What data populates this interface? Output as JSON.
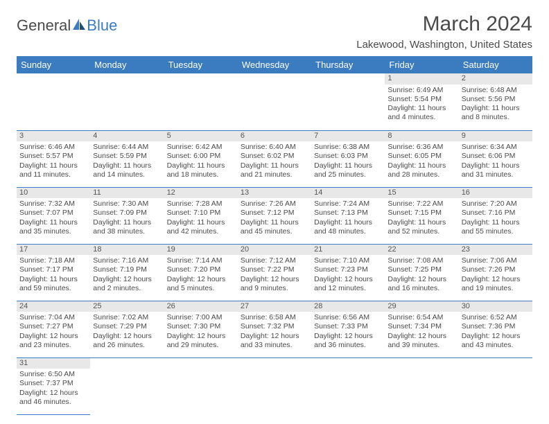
{
  "logo": {
    "word1": "General",
    "word2": "Blue"
  },
  "title": "March 2024",
  "location": "Lakewood, Washington, United States",
  "colors": {
    "header_bg": "#3b7bbf",
    "header_text": "#ffffff",
    "daynum_bg": "#e8e8e8",
    "border": "#3b7bbf",
    "text": "#4a4a4a",
    "background": "#ffffff"
  },
  "typography": {
    "title_fontsize": 30,
    "location_fontsize": 15,
    "dayheader_fontsize": 13,
    "cell_fontsize": 10.5
  },
  "day_headers": [
    "Sunday",
    "Monday",
    "Tuesday",
    "Wednesday",
    "Thursday",
    "Friday",
    "Saturday"
  ],
  "weeks": [
    [
      {
        "day": "",
        "lines": []
      },
      {
        "day": "",
        "lines": []
      },
      {
        "day": "",
        "lines": []
      },
      {
        "day": "",
        "lines": []
      },
      {
        "day": "",
        "lines": []
      },
      {
        "day": "1",
        "lines": [
          "Sunrise: 6:49 AM",
          "Sunset: 5:54 PM",
          "Daylight: 11 hours and 4 minutes."
        ]
      },
      {
        "day": "2",
        "lines": [
          "Sunrise: 6:48 AM",
          "Sunset: 5:56 PM",
          "Daylight: 11 hours and 8 minutes."
        ]
      }
    ],
    [
      {
        "day": "3",
        "lines": [
          "Sunrise: 6:46 AM",
          "Sunset: 5:57 PM",
          "Daylight: 11 hours and 11 minutes."
        ]
      },
      {
        "day": "4",
        "lines": [
          "Sunrise: 6:44 AM",
          "Sunset: 5:59 PM",
          "Daylight: 11 hours and 14 minutes."
        ]
      },
      {
        "day": "5",
        "lines": [
          "Sunrise: 6:42 AM",
          "Sunset: 6:00 PM",
          "Daylight: 11 hours and 18 minutes."
        ]
      },
      {
        "day": "6",
        "lines": [
          "Sunrise: 6:40 AM",
          "Sunset: 6:02 PM",
          "Daylight: 11 hours and 21 minutes."
        ]
      },
      {
        "day": "7",
        "lines": [
          "Sunrise: 6:38 AM",
          "Sunset: 6:03 PM",
          "Daylight: 11 hours and 25 minutes."
        ]
      },
      {
        "day": "8",
        "lines": [
          "Sunrise: 6:36 AM",
          "Sunset: 6:05 PM",
          "Daylight: 11 hours and 28 minutes."
        ]
      },
      {
        "day": "9",
        "lines": [
          "Sunrise: 6:34 AM",
          "Sunset: 6:06 PM",
          "Daylight: 11 hours and 31 minutes."
        ]
      }
    ],
    [
      {
        "day": "10",
        "lines": [
          "Sunrise: 7:32 AM",
          "Sunset: 7:07 PM",
          "Daylight: 11 hours and 35 minutes."
        ]
      },
      {
        "day": "11",
        "lines": [
          "Sunrise: 7:30 AM",
          "Sunset: 7:09 PM",
          "Daylight: 11 hours and 38 minutes."
        ]
      },
      {
        "day": "12",
        "lines": [
          "Sunrise: 7:28 AM",
          "Sunset: 7:10 PM",
          "Daylight: 11 hours and 42 minutes."
        ]
      },
      {
        "day": "13",
        "lines": [
          "Sunrise: 7:26 AM",
          "Sunset: 7:12 PM",
          "Daylight: 11 hours and 45 minutes."
        ]
      },
      {
        "day": "14",
        "lines": [
          "Sunrise: 7:24 AM",
          "Sunset: 7:13 PM",
          "Daylight: 11 hours and 48 minutes."
        ]
      },
      {
        "day": "15",
        "lines": [
          "Sunrise: 7:22 AM",
          "Sunset: 7:15 PM",
          "Daylight: 11 hours and 52 minutes."
        ]
      },
      {
        "day": "16",
        "lines": [
          "Sunrise: 7:20 AM",
          "Sunset: 7:16 PM",
          "Daylight: 11 hours and 55 minutes."
        ]
      }
    ],
    [
      {
        "day": "17",
        "lines": [
          "Sunrise: 7:18 AM",
          "Sunset: 7:17 PM",
          "Daylight: 11 hours and 59 minutes."
        ]
      },
      {
        "day": "18",
        "lines": [
          "Sunrise: 7:16 AM",
          "Sunset: 7:19 PM",
          "Daylight: 12 hours and 2 minutes."
        ]
      },
      {
        "day": "19",
        "lines": [
          "Sunrise: 7:14 AM",
          "Sunset: 7:20 PM",
          "Daylight: 12 hours and 5 minutes."
        ]
      },
      {
        "day": "20",
        "lines": [
          "Sunrise: 7:12 AM",
          "Sunset: 7:22 PM",
          "Daylight: 12 hours and 9 minutes."
        ]
      },
      {
        "day": "21",
        "lines": [
          "Sunrise: 7:10 AM",
          "Sunset: 7:23 PM",
          "Daylight: 12 hours and 12 minutes."
        ]
      },
      {
        "day": "22",
        "lines": [
          "Sunrise: 7:08 AM",
          "Sunset: 7:25 PM",
          "Daylight: 12 hours and 16 minutes."
        ]
      },
      {
        "day": "23",
        "lines": [
          "Sunrise: 7:06 AM",
          "Sunset: 7:26 PM",
          "Daylight: 12 hours and 19 minutes."
        ]
      }
    ],
    [
      {
        "day": "24",
        "lines": [
          "Sunrise: 7:04 AM",
          "Sunset: 7:27 PM",
          "Daylight: 12 hours and 23 minutes."
        ]
      },
      {
        "day": "25",
        "lines": [
          "Sunrise: 7:02 AM",
          "Sunset: 7:29 PM",
          "Daylight: 12 hours and 26 minutes."
        ]
      },
      {
        "day": "26",
        "lines": [
          "Sunrise: 7:00 AM",
          "Sunset: 7:30 PM",
          "Daylight: 12 hours and 29 minutes."
        ]
      },
      {
        "day": "27",
        "lines": [
          "Sunrise: 6:58 AM",
          "Sunset: 7:32 PM",
          "Daylight: 12 hours and 33 minutes."
        ]
      },
      {
        "day": "28",
        "lines": [
          "Sunrise: 6:56 AM",
          "Sunset: 7:33 PM",
          "Daylight: 12 hours and 36 minutes."
        ]
      },
      {
        "day": "29",
        "lines": [
          "Sunrise: 6:54 AM",
          "Sunset: 7:34 PM",
          "Daylight: 12 hours and 39 minutes."
        ]
      },
      {
        "day": "30",
        "lines": [
          "Sunrise: 6:52 AM",
          "Sunset: 7:36 PM",
          "Daylight: 12 hours and 43 minutes."
        ]
      }
    ],
    [
      {
        "day": "31",
        "lines": [
          "Sunrise: 6:50 AM",
          "Sunset: 7:37 PM",
          "Daylight: 12 hours and 46 minutes."
        ]
      },
      {
        "day": "",
        "lines": []
      },
      {
        "day": "",
        "lines": []
      },
      {
        "day": "",
        "lines": []
      },
      {
        "day": "",
        "lines": []
      },
      {
        "day": "",
        "lines": []
      },
      {
        "day": "",
        "lines": []
      }
    ]
  ]
}
